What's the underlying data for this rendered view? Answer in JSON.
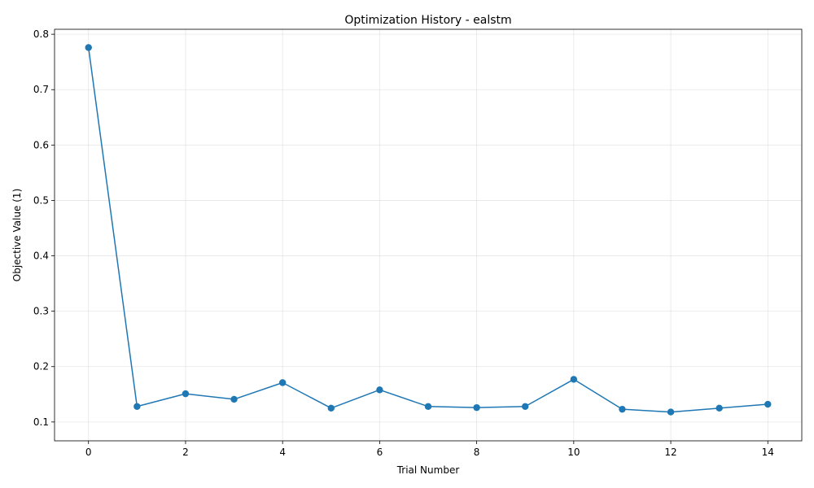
{
  "chart_data": {
    "type": "line",
    "title": "Optimization History - ealstm",
    "xlabel": "Trial Number",
    "ylabel": "Objective Value (1)",
    "xlim": [
      -0.7,
      14.7
    ],
    "ylim": [
      0.066,
      0.809
    ],
    "x_ticks": [
      0,
      2,
      4,
      6,
      8,
      10,
      12,
      14
    ],
    "x_tick_labels": [
      "0",
      "2",
      "4",
      "6",
      "8",
      "10",
      "12",
      "14"
    ],
    "y_ticks": [
      0.1,
      0.2,
      0.3,
      0.4,
      0.5,
      0.6,
      0.7,
      0.8
    ],
    "y_tick_labels": [
      "0.1",
      "0.2",
      "0.3",
      "0.4",
      "0.5",
      "0.6",
      "0.7",
      "0.8"
    ],
    "grid": true,
    "series": [
      {
        "color": "#1f77b4",
        "marker": "circle",
        "x": [
          0,
          1,
          2,
          3,
          4,
          5,
          6,
          7,
          8,
          9,
          10,
          11,
          12,
          13,
          14
        ],
        "y": [
          0.776,
          0.128,
          0.151,
          0.141,
          0.171,
          0.125,
          0.158,
          0.128,
          0.126,
          0.128,
          0.177,
          0.123,
          0.118,
          0.125,
          0.132
        ]
      }
    ]
  }
}
